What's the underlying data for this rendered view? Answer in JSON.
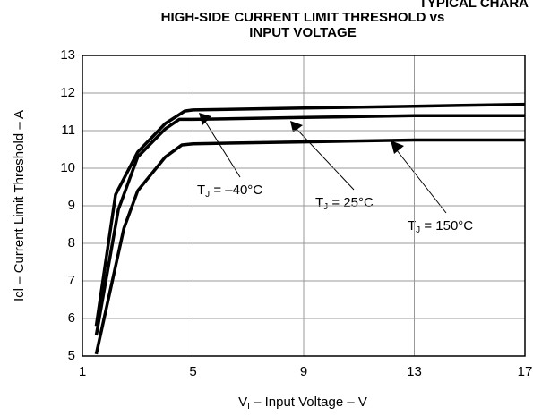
{
  "chart_data": {
    "type": "line",
    "header": "TYPICAL CHARA",
    "title": [
      "HIGH-SIDE CURRENT LIMIT THRESHOLD vs",
      "INPUT VOLTAGE"
    ],
    "xlabel": {
      "main": "V",
      "sub": "I",
      "rest": " – Input Voltage – V"
    },
    "ylabel": "Icl – Current Limit Threshold – A",
    "xlim": [
      1,
      17
    ],
    "xticks": [
      1,
      5,
      9,
      13,
      17
    ],
    "ylim": [
      5,
      13
    ],
    "yticks": [
      5,
      6,
      7,
      8,
      9,
      10,
      11,
      12,
      13
    ],
    "grid": true,
    "series": [
      {
        "color": "#000000",
        "x": [
          1.5,
          2.2,
          3,
          4,
          4.7,
          5,
          9,
          13,
          17
        ],
        "values": [
          5.8,
          9.3,
          10.43,
          11.19,
          11.52,
          11.55,
          11.6,
          11.65,
          11.7
        ]
      },
      {
        "color": "#000000",
        "x": [
          1.5,
          2.3,
          3,
          4,
          4.5,
          5,
          9,
          13,
          17
        ],
        "values": [
          5.55,
          8.9,
          10.3,
          11.05,
          11.3,
          11.3,
          11.35,
          11.4,
          11.4
        ]
      },
      {
        "color": "#000000",
        "x": [
          1.5,
          2.5,
          3,
          4,
          4.6,
          5,
          9,
          13,
          17
        ],
        "values": [
          5.05,
          8.4,
          9.4,
          10.3,
          10.62,
          10.65,
          10.7,
          10.75,
          10.75
        ]
      }
    ],
    "annotations": [
      {
        "main": "T",
        "sub": "J",
        "rest": " = –40°C"
      },
      {
        "main": "T",
        "sub": "J",
        "rest": " = 25°C"
      },
      {
        "main": "T",
        "sub": "J",
        "rest": " = 150°C"
      }
    ]
  }
}
